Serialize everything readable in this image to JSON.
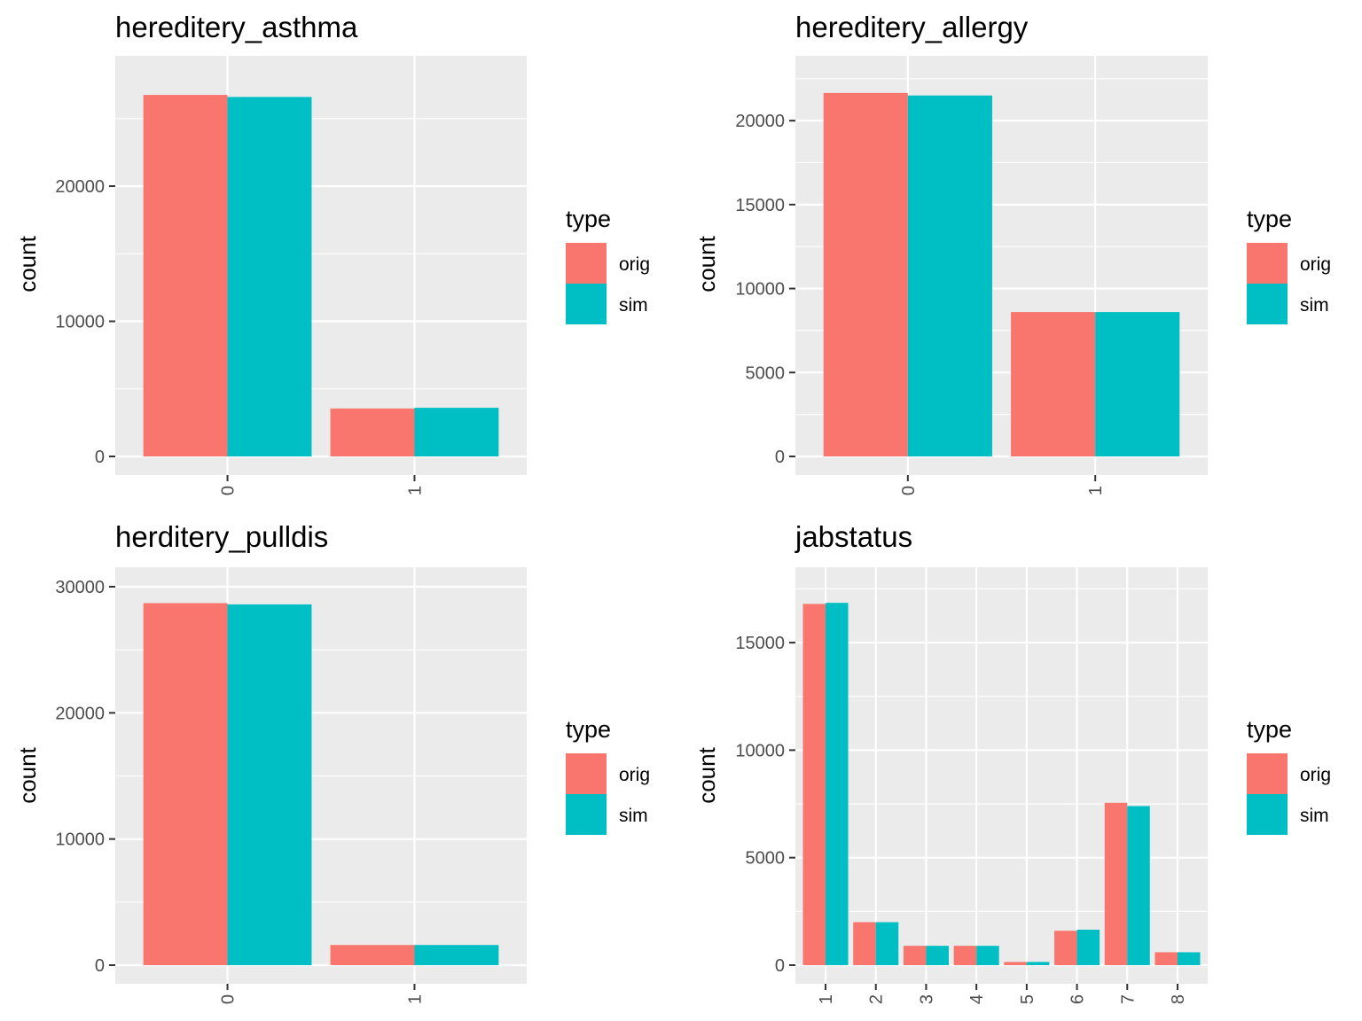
{
  "chart_data": [
    {
      "type": "bar",
      "title": "hereditery_asthma",
      "xlabel": "",
      "ylabel": "count",
      "categories": [
        "0",
        "1"
      ],
      "series": [
        {
          "name": "orig",
          "values": [
            26750,
            3550
          ]
        },
        {
          "name": "sim",
          "values": [
            26600,
            3600
          ]
        }
      ],
      "ylim": [
        0,
        28200
      ],
      "yticks": [
        0,
        10000,
        20000
      ],
      "legend_title": "type",
      "legend_position": "right",
      "grid": true
    },
    {
      "type": "bar",
      "title": "hereditery_allergy",
      "xlabel": "",
      "ylabel": "count",
      "categories": [
        "0",
        "1"
      ],
      "series": [
        {
          "name": "orig",
          "values": [
            21650,
            8600
          ]
        },
        {
          "name": "sim",
          "values": [
            21500,
            8600
          ]
        }
      ],
      "ylim": [
        0,
        22700
      ],
      "yticks": [
        0,
        5000,
        10000,
        15000,
        20000
      ],
      "legend_title": "type",
      "legend_position": "right",
      "grid": true
    },
    {
      "type": "bar",
      "title": "herditery_pulldis",
      "xlabel": "",
      "ylabel": "count",
      "categories": [
        "0",
        "1"
      ],
      "series": [
        {
          "name": "orig",
          "values": [
            28700,
            1600
          ]
        },
        {
          "name": "sim",
          "values": [
            28600,
            1600
          ]
        }
      ],
      "ylim": [
        0,
        30000
      ],
      "yticks": [
        0,
        10000,
        20000,
        30000
      ],
      "legend_title": "type",
      "legend_position": "right",
      "grid": true
    },
    {
      "type": "bar",
      "title": "jabstatus",
      "xlabel": "",
      "ylabel": "count",
      "categories": [
        "1",
        "2",
        "3",
        "4",
        "5",
        "6",
        "7",
        "8"
      ],
      "series": [
        {
          "name": "orig",
          "values": [
            16800,
            2000,
            900,
            900,
            150,
            1600,
            7550,
            600
          ]
        },
        {
          "name": "sim",
          "values": [
            16850,
            2000,
            900,
            900,
            150,
            1650,
            7400,
            600
          ]
        }
      ],
      "ylim": [
        0,
        17600
      ],
      "yticks": [
        0,
        5000,
        10000,
        15000
      ],
      "legend_title": "type",
      "legend_position": "right",
      "grid": true
    }
  ],
  "colors": {
    "orig": "#F8766D",
    "sim": "#00BFC4",
    "panel_bg": "#EBEBEB",
    "grid": "#FFFFFF",
    "tick_text": "#4D4D4D",
    "tick_mark": "#333333"
  }
}
